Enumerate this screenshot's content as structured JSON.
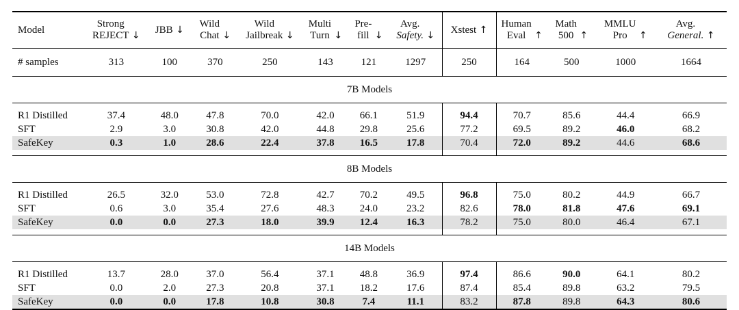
{
  "columns": [
    {
      "l1": "Model",
      "l2": "",
      "arrow": ""
    },
    {
      "l1": "Strong",
      "l2": "REJECT",
      "arrow": "↓"
    },
    {
      "l1": "JBB",
      "l2": "",
      "arrow": "↓"
    },
    {
      "l1": "Wild",
      "l2": "Chat",
      "arrow": "↓"
    },
    {
      "l1": "Wild",
      "l2": "Jailbreak",
      "arrow": "↓"
    },
    {
      "l1": "Multi",
      "l2": "Turn",
      "arrow": "↓"
    },
    {
      "l1": "Pre-",
      "l2": "fill",
      "arrow": "↓"
    },
    {
      "l1": "Avg.",
      "l2": "Safety.",
      "arrow": "↓"
    },
    {
      "l1": "Xstest",
      "l2": "",
      "arrow": "↑"
    },
    {
      "l1": "Human",
      "l2": "Eval",
      "arrow": "↑"
    },
    {
      "l1": "Math",
      "l2": "500",
      "arrow": "↑"
    },
    {
      "l1": "MMLU",
      "l2": "Pro",
      "arrow": "↑"
    },
    {
      "l1": "Avg.",
      "l2": "General.",
      "arrow": "↑"
    }
  ],
  "samples": [
    "# samples",
    "313",
    "100",
    "370",
    "250",
    "143",
    "121",
    "1297",
    "250",
    "164",
    "500",
    "1000",
    "1664"
  ],
  "sections": [
    {
      "title": "7B Models",
      "rows": [
        {
          "cells": [
            "R1 Distilled",
            "37.4",
            "48.0",
            "47.8",
            "70.0",
            "42.0",
            "66.1",
            "51.9",
            "94.4",
            "70.7",
            "85.6",
            "44.4",
            "66.9"
          ],
          "bold": [
            8
          ]
        },
        {
          "cells": [
            "SFT",
            "2.9",
            "3.0",
            "30.8",
            "42.0",
            "44.8",
            "29.8",
            "25.6",
            "77.2",
            "69.5",
            "89.2",
            "46.0",
            "68.2"
          ],
          "bold": [
            11
          ]
        },
        {
          "cells": [
            "SafeKey",
            "0.3",
            "1.0",
            "28.6",
            "22.4",
            "37.8",
            "16.5",
            "17.8",
            "70.4",
            "72.0",
            "89.2",
            "44.6",
            "68.6"
          ],
          "bold": [
            1,
            2,
            3,
            4,
            5,
            6,
            7,
            9,
            10,
            12
          ]
        }
      ]
    },
    {
      "title": "8B Models",
      "rows": [
        {
          "cells": [
            "R1 Distilled",
            "26.5",
            "32.0",
            "53.0",
            "72.8",
            "42.7",
            "70.2",
            "49.5",
            "96.8",
            "75.0",
            "80.2",
            "44.9",
            "66.7"
          ],
          "bold": [
            8
          ]
        },
        {
          "cells": [
            "SFT",
            "0.6",
            "3.0",
            "35.4",
            "27.6",
            "48.3",
            "24.0",
            "23.2",
            "82.6",
            "78.0",
            "81.8",
            "47.6",
            "69.1"
          ],
          "bold": [
            9,
            10,
            11,
            12
          ]
        },
        {
          "cells": [
            "SafeKey",
            "0.0",
            "0.0",
            "27.3",
            "18.0",
            "39.9",
            "12.4",
            "16.3",
            "78.2",
            "75.0",
            "80.0",
            "46.4",
            "67.1"
          ],
          "bold": [
            1,
            2,
            3,
            4,
            5,
            6,
            7
          ]
        }
      ]
    },
    {
      "title": "14B Models",
      "rows": [
        {
          "cells": [
            "R1 Distilled",
            "13.7",
            "28.0",
            "37.0",
            "56.4",
            "37.1",
            "48.8",
            "36.9",
            "97.4",
            "86.6",
            "90.0",
            "64.1",
            "80.2"
          ],
          "bold": [
            8,
            10
          ]
        },
        {
          "cells": [
            "SFT",
            "0.0",
            "2.0",
            "27.3",
            "20.8",
            "37.1",
            "18.2",
            "17.6",
            "87.4",
            "85.4",
            "89.8",
            "63.2",
            "79.5"
          ],
          "bold": []
        },
        {
          "cells": [
            "SafeKey",
            "0.0",
            "0.0",
            "17.8",
            "10.8",
            "30.8",
            "7.4",
            "11.1",
            "83.2",
            "87.8",
            "89.8",
            "64.3",
            "80.6"
          ],
          "bold": [
            1,
            2,
            3,
            4,
            5,
            6,
            7,
            9,
            11,
            12
          ]
        }
      ]
    }
  ]
}
